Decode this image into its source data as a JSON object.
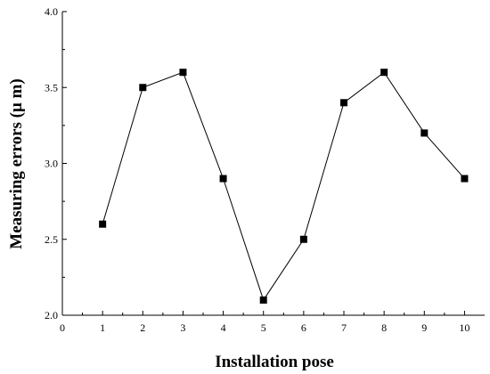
{
  "chart_data": {
    "type": "line",
    "xlabel": "Installation pose",
    "ylabel": "Measuring errors (μ m)",
    "xlim": [
      0,
      10.5
    ],
    "ylim": [
      2.0,
      4.0
    ],
    "x_ticks": [
      0,
      1,
      2,
      3,
      4,
      5,
      6,
      7,
      8,
      9,
      10
    ],
    "y_ticks": [
      2.0,
      2.5,
      3.0,
      3.5,
      4.0
    ],
    "x_tick_labels": [
      "0",
      "1",
      "2",
      "3",
      "4",
      "5",
      "6",
      "7",
      "8",
      "9",
      "10"
    ],
    "y_tick_labels": [
      "2.0",
      "2.5",
      "3.0",
      "3.5",
      "4.0"
    ],
    "grid": false,
    "marker": "square",
    "series": [
      {
        "x": [
          1,
          2,
          3,
          4,
          5,
          6,
          7,
          8,
          9,
          10
        ],
        "y": [
          2.6,
          3.5,
          3.6,
          2.9,
          2.1,
          2.5,
          3.4,
          3.6,
          3.2,
          2.9
        ],
        "color": "#000000"
      }
    ]
  }
}
